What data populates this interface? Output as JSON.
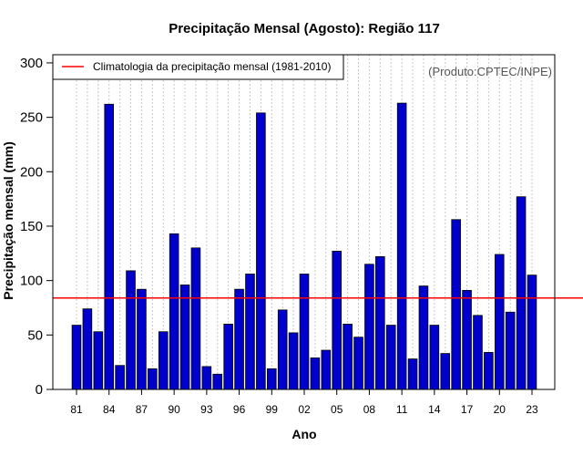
{
  "chart_data": {
    "type": "bar",
    "title": "Precipitação Mensal (Agosto): Região 117",
    "xlabel": "Ano",
    "ylabel": "Precipitação mensal (mm)",
    "credit": "(Produto:CPTEC/INPE)",
    "ylim": [
      0,
      300
    ],
    "yticks": [
      0,
      50,
      100,
      150,
      200,
      250,
      300
    ],
    "xtick_labels": [
      "81",
      "84",
      "87",
      "90",
      "93",
      "96",
      "99",
      "02",
      "05",
      "08",
      "11",
      "14",
      "17",
      "20",
      "23"
    ],
    "categories": [
      "1981",
      "1982",
      "1983",
      "1984",
      "1985",
      "1986",
      "1987",
      "1988",
      "1989",
      "1990",
      "1991",
      "1992",
      "1993",
      "1994",
      "1995",
      "1996",
      "1997",
      "1998",
      "1999",
      "2000",
      "2001",
      "2002",
      "2003",
      "2004",
      "2005",
      "2006",
      "2007",
      "2008",
      "2009",
      "2010",
      "2011",
      "2012",
      "2013",
      "2014",
      "2015",
      "2016",
      "2017",
      "2018",
      "2019",
      "2020",
      "2021",
      "2022",
      "2023"
    ],
    "values": [
      59,
      74,
      53,
      262,
      22,
      109,
      92,
      19,
      53,
      143,
      96,
      130,
      21,
      14,
      60,
      92,
      106,
      254,
      19,
      73,
      52,
      106,
      29,
      36,
      127,
      60,
      48,
      115,
      122,
      59,
      263,
      28,
      95,
      59,
      33,
      156,
      91,
      68,
      34,
      124,
      71,
      177,
      105
    ],
    "bar_color": "#0000cd",
    "climatology": {
      "label": "Climatologia da precipitação mensal (1981-2010)",
      "value": 84,
      "color": "#ff0000"
    },
    "grid": "vertical dotted",
    "legend_position": "top-left"
  }
}
